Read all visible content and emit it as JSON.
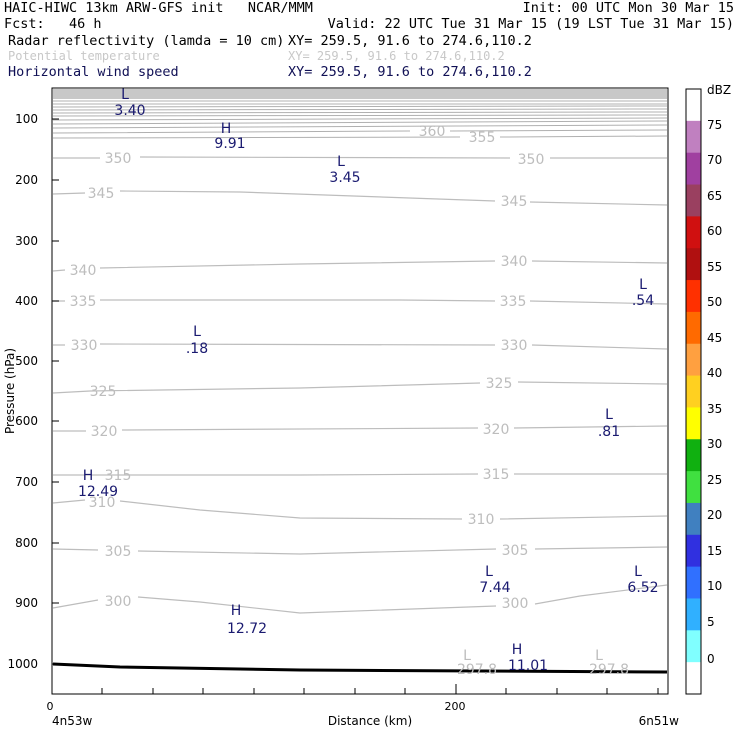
{
  "header": {
    "line1_left": "HAIC-HIWC 13km ARW-GFS init   NCAR/MMM",
    "line1_right": "Init: 00 UTC Mon 30 Mar 15",
    "line2_left": "Fcst:   46 h",
    "line2_right": "Valid: 22 UTC Tue 31 Mar 15 (19 LST Tue 31 Mar 15)",
    "fields": [
      {
        "name": "Radar reflectivity (lamda = 10 cm)",
        "xy": "XY= 259.5, 91.6 to 274.6,110.2"
      },
      {
        "name": "Potential temperature",
        "xy": "XY= 259.5, 91.6 to 274.6,110.2"
      },
      {
        "name": "Horizontal wind speed",
        "xy": "XY= 259.5, 91.6 to 274.6,110.2"
      }
    ]
  },
  "axes": {
    "ylabel": "Pressure (hPa)",
    "xlabel": "Distance (km)",
    "yticks": [
      "100",
      "200",
      "300",
      "400",
      "500",
      "600",
      "700",
      "800",
      "900",
      "1000"
    ],
    "xticks": [
      "0",
      "200"
    ],
    "left_endpoint": "4n53w",
    "right_endpoint": "6n51w"
  },
  "colorbar": {
    "unit": "dBZ",
    "levels": [
      "75",
      "70",
      "65",
      "60",
      "55",
      "50",
      "45",
      "40",
      "35",
      "30",
      "25",
      "20",
      "15",
      "10",
      "5",
      "0"
    ],
    "colors": [
      "#ffffff",
      "#c080c0",
      "#a040a0",
      "#9a4060",
      "#d01010",
      "#b01010",
      "#ff3000",
      "#ff6a00",
      "#ffa040",
      "#ffd020",
      "#ffff00",
      "#10b010",
      "#40e040",
      "#4080c0",
      "#3030e0",
      "#3070ff",
      "#30b0ff",
      "#80ffff",
      "#ffffff"
    ]
  },
  "theta_labels": [
    {
      "text": "360"
    },
    {
      "text": "355"
    },
    {
      "text": "350"
    },
    {
      "text": "350"
    },
    {
      "text": "345"
    },
    {
      "text": "345"
    },
    {
      "text": "340"
    },
    {
      "text": "340"
    },
    {
      "text": "335"
    },
    {
      "text": "335"
    },
    {
      "text": "330"
    },
    {
      "text": "330"
    },
    {
      "text": "325"
    },
    {
      "text": "325"
    },
    {
      "text": "320"
    },
    {
      "text": "320"
    },
    {
      "text": "315"
    },
    {
      "text": "315"
    },
    {
      "text": "310"
    },
    {
      "text": "310"
    },
    {
      "text": "305"
    },
    {
      "text": "305"
    },
    {
      "text": "300"
    },
    {
      "text": "300"
    },
    {
      "text": "297.8"
    },
    {
      "text": "297.8"
    }
  ],
  "theta_lows": [
    {
      "text": "L"
    },
    {
      "text": "L"
    }
  ],
  "wind_extrema": [
    {
      "symbol": "L",
      "value": "3.40"
    },
    {
      "symbol": "H",
      "value": "9.91"
    },
    {
      "symbol": "L",
      "value": "3.45"
    },
    {
      "symbol": "L",
      "value": ".54"
    },
    {
      "symbol": "L",
      "value": ".18"
    },
    {
      "symbol": "L",
      "value": ".81"
    },
    {
      "symbol": "H",
      "value": "12.49"
    },
    {
      "symbol": "H",
      "value": "12.72"
    },
    {
      "symbol": "L",
      "value": "7.44"
    },
    {
      "symbol": "L",
      "value": "6.52"
    },
    {
      "symbol": "H",
      "value": "11.01"
    }
  ]
}
